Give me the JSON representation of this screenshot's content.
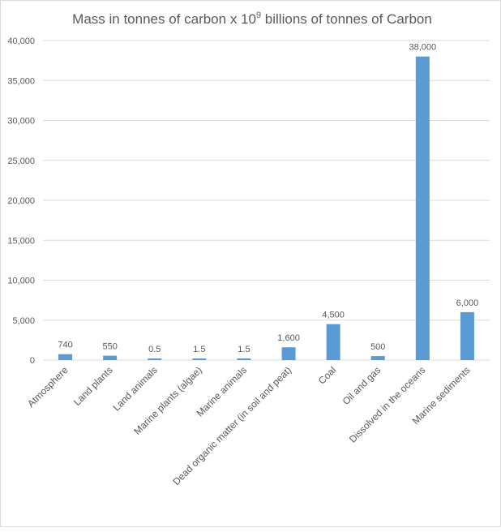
{
  "chart_data": {
    "type": "bar",
    "title": "Mass in tonnes of carbon x 10",
    "title_sup": "9",
    "title_rest": " billions of tonnes of  Carbon",
    "xlabel": "",
    "ylabel": "",
    "ylim": [
      0,
      40000
    ],
    "yticks": [
      0,
      5000,
      10000,
      15000,
      20000,
      25000,
      30000,
      35000,
      40000
    ],
    "ytick_labels": [
      "0",
      "5,000",
      "10,000",
      "15,000",
      "20,000",
      "25,000",
      "30,000",
      "35,000",
      "40,000"
    ],
    "grid": true,
    "bar_color": "#5b9bd5",
    "categories": [
      "Atmosphere",
      "Land plants",
      "Land animals",
      "Marine plants (algae)",
      "Marine animals",
      "Dead organic matter (in soil and peat)",
      "Coal",
      "Oil and gas",
      "Dissolved in the oceans",
      "Marine sediments"
    ],
    "values": [
      740,
      550,
      0.5,
      1.5,
      1.5,
      1600,
      4500,
      500,
      38000,
      6000
    ],
    "data_labels": [
      "740",
      "550",
      "0.5",
      "1.5",
      "1.5",
      "1,600",
      "4,500",
      "500",
      "38,000",
      "6,000"
    ]
  }
}
